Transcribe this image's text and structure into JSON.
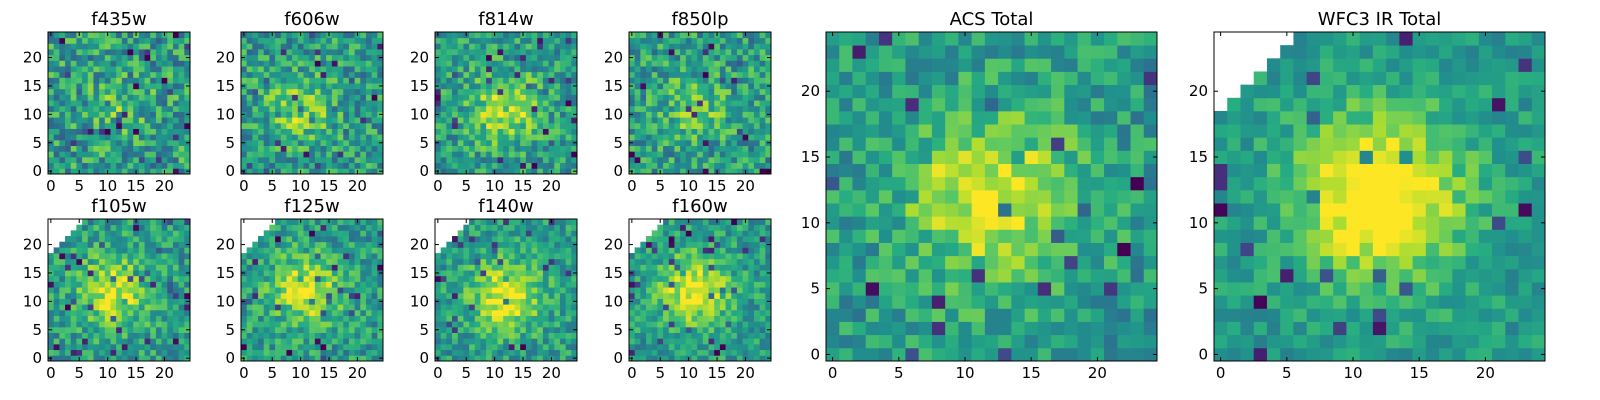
{
  "figure": {
    "layout": "two rows of four small panels on the left, two large panels on the right",
    "colormap": "viridis"
  },
  "chart_data": [
    {
      "type": "heatmap",
      "title": "f435w",
      "grid_size": 25,
      "xticks": [
        "0",
        "5",
        "10",
        "15",
        "20"
      ],
      "yticks": [
        "0",
        "5",
        "10",
        "15",
        "20"
      ],
      "xlim": [
        0,
        24
      ],
      "ylim": [
        0,
        24
      ],
      "peak": [
        12,
        11
      ],
      "peak_strength": 0.15,
      "noise": 0.5,
      "masked_corner": false,
      "seed": 11
    },
    {
      "type": "heatmap",
      "title": "f606w",
      "grid_size": 25,
      "xticks": [
        "0",
        "5",
        "10",
        "15",
        "20"
      ],
      "yticks": [
        "0",
        "5",
        "10",
        "15",
        "20"
      ],
      "xlim": [
        0,
        24
      ],
      "ylim": [
        0,
        24
      ],
      "peak": [
        10,
        11
      ],
      "peak_strength": 0.25,
      "noise": 0.45,
      "masked_corner": false,
      "seed": 23
    },
    {
      "type": "heatmap",
      "title": "f814w",
      "grid_size": 25,
      "xticks": [
        "0",
        "5",
        "10",
        "15",
        "20"
      ],
      "yticks": [
        "0",
        "5",
        "10",
        "15",
        "20"
      ],
      "xlim": [
        0,
        24
      ],
      "ylim": [
        0,
        24
      ],
      "peak": [
        12,
        11
      ],
      "peak_strength": 0.35,
      "noise": 0.42,
      "masked_corner": false,
      "seed": 37
    },
    {
      "type": "heatmap",
      "title": "f850lp",
      "grid_size": 25,
      "xticks": [
        "0",
        "5",
        "10",
        "15",
        "20"
      ],
      "yticks": [
        "0",
        "5",
        "10",
        "15",
        "20"
      ],
      "xlim": [
        0,
        24
      ],
      "ylim": [
        0,
        24
      ],
      "peak": [
        11,
        11
      ],
      "peak_strength": 0.2,
      "noise": 0.45,
      "masked_corner": false,
      "seed": 41
    },
    {
      "type": "heatmap",
      "title": "f105w",
      "grid_size": 25,
      "xticks": [
        "0",
        "5",
        "10",
        "15",
        "20"
      ],
      "yticks": [
        "0",
        "5",
        "10",
        "15",
        "20"
      ],
      "xlim": [
        0,
        24
      ],
      "ylim": [
        0,
        24
      ],
      "peak": [
        11,
        12
      ],
      "peak_strength": 0.4,
      "noise": 0.38,
      "masked_corner": true,
      "seed": 53
    },
    {
      "type": "heatmap",
      "title": "f125w",
      "grid_size": 25,
      "xticks": [
        "0",
        "5",
        "10",
        "15",
        "20"
      ],
      "yticks": [
        "0",
        "5",
        "10",
        "15",
        "20"
      ],
      "xlim": [
        0,
        24
      ],
      "ylim": [
        0,
        24
      ],
      "peak": [
        11,
        12
      ],
      "peak_strength": 0.4,
      "noise": 0.38,
      "masked_corner": true,
      "seed": 67
    },
    {
      "type": "heatmap",
      "title": "f140w",
      "grid_size": 25,
      "xticks": [
        "0",
        "5",
        "10",
        "15",
        "20"
      ],
      "yticks": [
        "0",
        "5",
        "10",
        "15",
        "20"
      ],
      "xlim": [
        0,
        24
      ],
      "ylim": [
        0,
        24
      ],
      "peak": [
        12,
        11
      ],
      "peak_strength": 0.45,
      "noise": 0.35,
      "masked_corner": true,
      "seed": 79
    },
    {
      "type": "heatmap",
      "title": "f160w",
      "grid_size": 25,
      "xticks": [
        "0",
        "5",
        "10",
        "15",
        "20"
      ],
      "yticks": [
        "0",
        "5",
        "10",
        "15",
        "20"
      ],
      "xlim": [
        0,
        24
      ],
      "ylim": [
        0,
        24
      ],
      "peak": [
        11,
        12
      ],
      "peak_strength": 0.45,
      "noise": 0.35,
      "masked_corner": true,
      "seed": 83
    },
    {
      "type": "heatmap",
      "title": "ACS Total",
      "grid_size": 25,
      "xticks": [
        "0",
        "5",
        "10",
        "15",
        "20"
      ],
      "yticks": [
        "0",
        "5",
        "10",
        "15",
        "20"
      ],
      "xlim": [
        0,
        24
      ],
      "ylim": [
        0,
        24
      ],
      "peak": [
        12,
        12
      ],
      "peak_strength": 0.45,
      "noise": 0.35,
      "masked_corner": false,
      "seed": 97
    },
    {
      "type": "heatmap",
      "title": "WFC3 IR Total",
      "grid_size": 25,
      "xticks": [
        "0",
        "5",
        "10",
        "15",
        "20"
      ],
      "yticks": [
        "0",
        "5",
        "10",
        "15",
        "20"
      ],
      "xlim": [
        0,
        24
      ],
      "ylim": [
        0,
        24
      ],
      "peak": [
        12,
        12
      ],
      "peak_strength": 0.6,
      "noise": 0.25,
      "masked_corner": true,
      "seed": 103
    }
  ]
}
